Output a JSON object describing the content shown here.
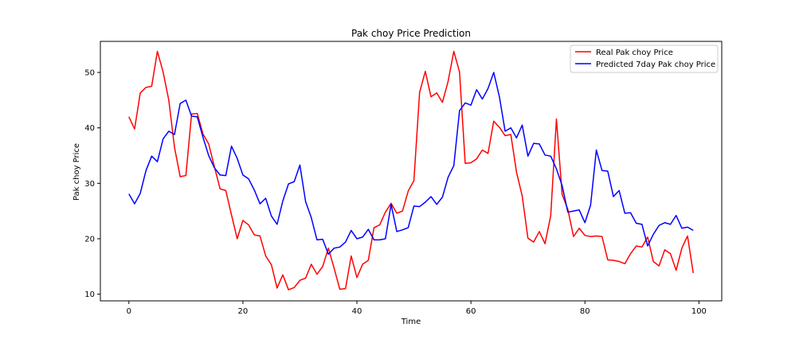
{
  "chart_data": {
    "type": "line",
    "title": "Pak choy Price Prediction",
    "xlabel": "Time",
    "ylabel": "Pak choy Price",
    "xlim": [
      -5,
      104
    ],
    "ylim": [
      8.8,
      55.6
    ],
    "x_ticks": [
      0,
      20,
      40,
      60,
      80,
      100
    ],
    "y_ticks": [
      10,
      20,
      30,
      40,
      50
    ],
    "grid": false,
    "legend_position": "top-right",
    "series": [
      {
        "name": "Real Pak choy Price",
        "color": "#ff0000",
        "values": [
          42.0,
          39.8,
          46.3,
          47.3,
          47.5,
          53.8,
          50.1,
          45.0,
          36.5,
          31.2,
          31.4,
          42.5,
          42.6,
          38.9,
          37.1,
          33.0,
          29.0,
          28.7,
          24.3,
          20.0,
          23.3,
          22.5,
          20.7,
          20.5,
          16.9,
          15.3,
          11.1,
          13.5,
          10.8,
          11.2,
          12.5,
          12.9,
          15.4,
          13.6,
          15.0,
          18.3,
          14.7,
          10.9,
          11.0,
          16.9,
          13.0,
          15.4,
          16.1,
          22.0,
          22.5,
          24.8,
          26.4,
          24.6,
          25.0,
          28.6,
          30.5,
          46.4,
          50.2,
          45.6,
          46.3,
          44.6,
          48.4,
          53.8,
          50.1,
          33.6,
          33.7,
          34.4,
          36.0,
          35.4,
          41.2,
          40.1,
          38.6,
          38.8,
          32.0,
          27.7,
          20.1,
          19.4,
          21.3,
          19.1,
          24.2,
          41.6,
          28.0,
          25.3,
          20.4,
          21.9,
          20.6,
          20.4,
          20.5,
          20.4,
          16.2,
          16.1,
          15.9,
          15.5,
          17.3,
          18.7,
          18.5,
          20.3,
          15.9,
          15.1,
          18.0,
          17.3,
          14.3,
          18.3,
          20.5,
          13.8
        ]
      },
      {
        "name": "Predicted 7day Pak choy Price",
        "color": "#0000ff",
        "values": [
          28.1,
          26.3,
          28.2,
          32.3,
          34.9,
          33.9,
          38.0,
          39.4,
          38.8,
          44.4,
          45.0,
          42.1,
          42.0,
          38.3,
          35.0,
          32.8,
          31.5,
          31.4,
          36.7,
          34.5,
          31.5,
          30.8,
          28.8,
          26.3,
          27.3,
          24.1,
          22.6,
          26.8,
          29.9,
          30.3,
          33.3,
          26.7,
          23.8,
          19.8,
          19.9,
          17.2,
          18.3,
          18.5,
          19.4,
          21.5,
          20.0,
          20.3,
          21.7,
          19.8,
          19.8,
          20.0,
          26.2,
          21.3,
          21.6,
          22.0,
          25.9,
          25.8,
          26.6,
          27.6,
          26.2,
          27.5,
          31.1,
          33.2,
          43.1,
          44.5,
          44.1,
          46.9,
          45.2,
          47.1,
          50.0,
          45.6,
          39.4,
          40.0,
          38.2,
          40.5,
          34.9,
          37.2,
          37.1,
          35.1,
          34.9,
          32.6,
          29.6,
          24.8,
          25.0,
          25.2,
          22.9,
          26.1,
          36.0,
          32.3,
          32.2,
          27.6,
          28.7,
          24.6,
          24.7,
          22.8,
          22.6,
          18.7,
          20.8,
          22.4,
          22.9,
          22.6,
          24.2,
          21.9,
          22.1,
          21.5
        ]
      }
    ]
  }
}
